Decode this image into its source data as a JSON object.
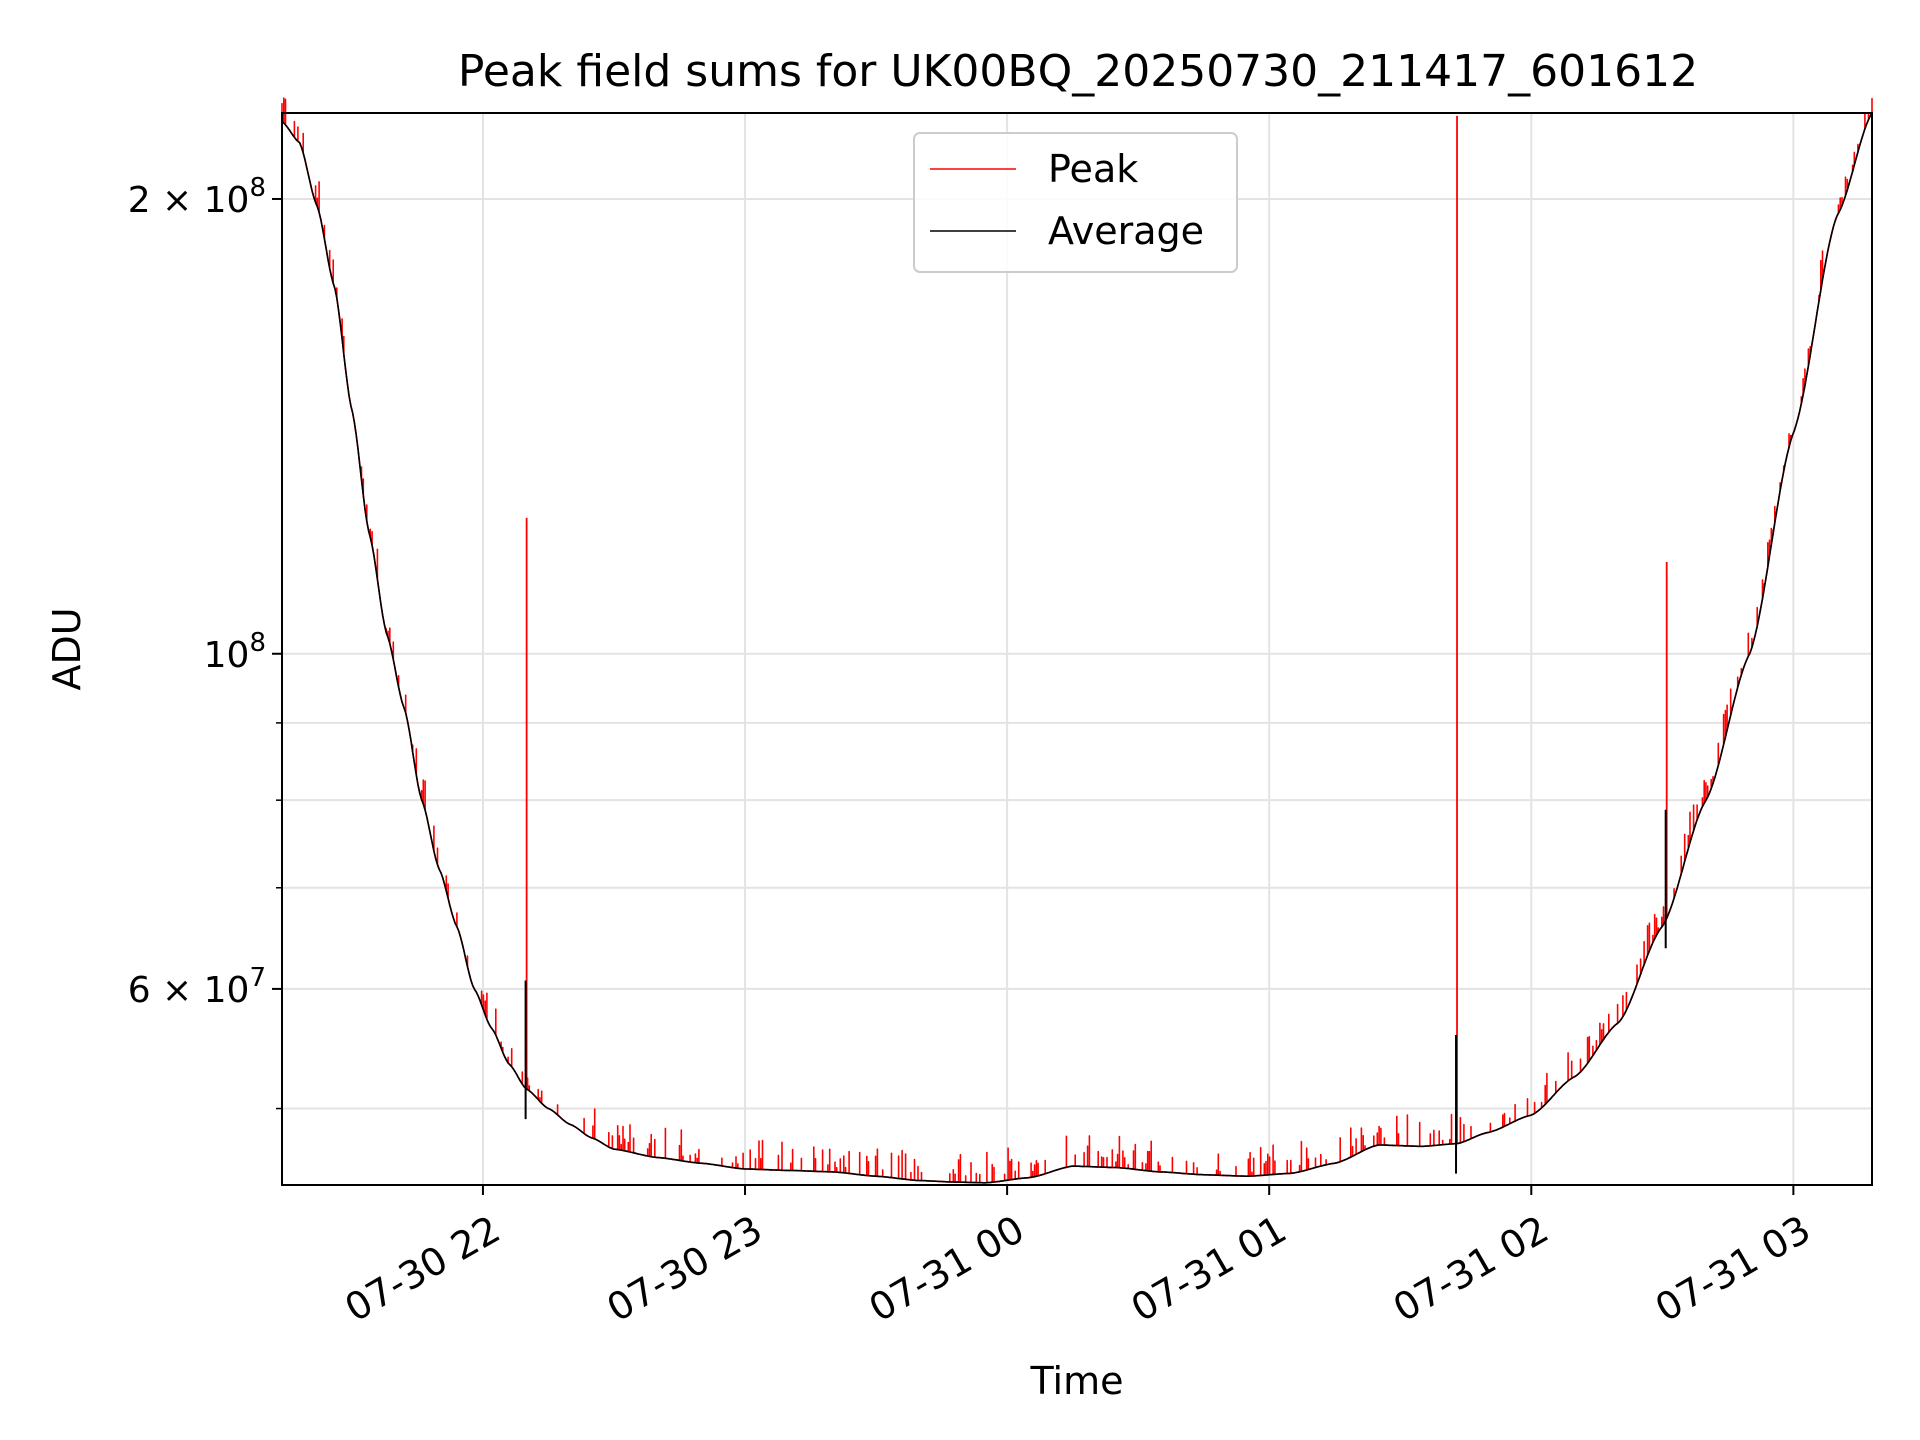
{
  "chart_data": {
    "type": "line",
    "title": "Peak field sums for UK00BQ_20250730_211417_601612",
    "xlabel": "Time",
    "ylabel": "ADU",
    "yscale": "log",
    "ylim": [
      44500000,
      228000000
    ],
    "xlim": [
      "2025-07-30 21:14",
      "2025-07-31 03:18"
    ],
    "grid": true,
    "legend_position": "upper center",
    "x_ticks": [
      "07-30 22",
      "07-30 23",
      "07-31 00",
      "07-31 01",
      "07-31 02",
      "07-31 03"
    ],
    "x_tick_times": [
      "2025-07-30 22:00",
      "2025-07-30 23:00",
      "2025-07-31 00:00",
      "2025-07-31 01:00",
      "2025-07-31 02:00",
      "2025-07-31 03:00"
    ],
    "y_ticks": [
      {
        "value": 200000000,
        "mantissa": "2",
        "exp": "8"
      },
      {
        "value": 100000000,
        "mantissa": "",
        "exp": "8"
      },
      {
        "value": 60000000,
        "mantissa": "6",
        "exp": "7"
      }
    ],
    "y_minor_ticks": [
      50000000,
      70000000,
      80000000,
      90000000
    ],
    "series": [
      {
        "name": "Peak",
        "color": "#ff0000",
        "spikes": [
          {
            "time": "2025-07-30 22:10",
            "value": 123000000
          },
          {
            "time": "2025-07-31 01:43",
            "value": 227000000
          },
          {
            "time": "2025-07-31 02:31",
            "value": 115000000
          }
        ]
      },
      {
        "name": "Average",
        "color": "#000000",
        "x": [
          "2025-07-30 21:14",
          "2025-07-30 21:18",
          "2025-07-30 21:22",
          "2025-07-30 21:26",
          "2025-07-30 21:30",
          "2025-07-30 21:34",
          "2025-07-30 21:38",
          "2025-07-30 21:42",
          "2025-07-30 21:46",
          "2025-07-30 21:50",
          "2025-07-30 21:54",
          "2025-07-30 21:58",
          "2025-07-30 22:02",
          "2025-07-30 22:06",
          "2025-07-30 22:10",
          "2025-07-30 22:15",
          "2025-07-30 22:20",
          "2025-07-30 22:25",
          "2025-07-30 22:30",
          "2025-07-30 22:40",
          "2025-07-30 22:50",
          "2025-07-30 23:00",
          "2025-07-30 23:10",
          "2025-07-30 23:20",
          "2025-07-30 23:30",
          "2025-07-30 23:40",
          "2025-07-30 23:48",
          "2025-07-30 23:55",
          "2025-07-31 00:05",
          "2025-07-31 00:15",
          "2025-07-31 00:25",
          "2025-07-31 00:35",
          "2025-07-31 00:45",
          "2025-07-31 00:55",
          "2025-07-31 01:05",
          "2025-07-31 01:15",
          "2025-07-31 01:25",
          "2025-07-31 01:35",
          "2025-07-31 01:43",
          "2025-07-31 01:50",
          "2025-07-31 02:00",
          "2025-07-31 02:10",
          "2025-07-31 02:20",
          "2025-07-31 02:30",
          "2025-07-31 02:40",
          "2025-07-31 02:50",
          "2025-07-31 03:00",
          "2025-07-31 03:10",
          "2025-07-31 03:18"
        ],
        "values": [
          225000000,
          218000000,
          198000000,
          175000000,
          145000000,
          120000000,
          103000000,
          92000000,
          80000000,
          72000000,
          66000000,
          60000000,
          56500000,
          53500000,
          51500000,
          50000000,
          48800000,
          47800000,
          47000000,
          46400000,
          46000000,
          45600000,
          45500000,
          45400000,
          45100000,
          44800000,
          44700000,
          44650000,
          45000000,
          45800000,
          45700000,
          45400000,
          45200000,
          45100000,
          45300000,
          46000000,
          47300000,
          47200000,
          47400000,
          48200000,
          49500000,
          52500000,
          57000000,
          66000000,
          80000000,
          100000000,
          140000000,
          195000000,
          228000000
        ]
      }
    ]
  }
}
